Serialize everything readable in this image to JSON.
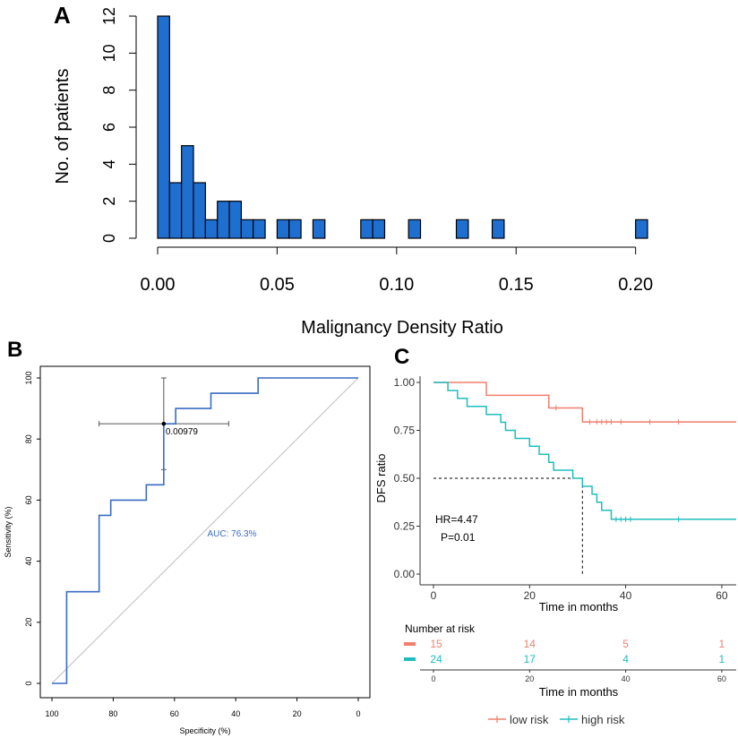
{
  "colors": {
    "bar_fill": "#1f6fd1",
    "roc_line": "#3a6cc4",
    "auc_text": "#3a6cc4",
    "low_risk": "#f07f6e",
    "high_risk": "#1fbdbf",
    "diagonal": "#bdbdbd",
    "crosshair": "#555555"
  },
  "chart_data": [
    {
      "panel": "A",
      "type": "bar",
      "xlabel": "Malignancy Density Ratio",
      "ylabel": "No. of patients",
      "bin_width": 0.005,
      "bin_starts": [
        0.0,
        0.005,
        0.01,
        0.015,
        0.02,
        0.025,
        0.03,
        0.035,
        0.04,
        0.05,
        0.055,
        0.065,
        0.085,
        0.09,
        0.105,
        0.125,
        0.14,
        0.2
      ],
      "values": [
        12,
        3,
        5,
        3,
        1,
        2,
        2,
        1,
        1,
        1,
        1,
        1,
        1,
        1,
        1,
        1,
        1,
        1
      ],
      "xlim": [
        0,
        0.205
      ],
      "ylim": [
        0,
        12
      ],
      "x_ticks": [
        "0.00",
        "0.05",
        "0.10",
        "0.15",
        "0.20"
      ],
      "x_tick_values": [
        0,
        0.05,
        0.1,
        0.15,
        0.2
      ],
      "y_ticks": [
        "0",
        "2",
        "4",
        "6",
        "8",
        "10",
        "12"
      ],
      "y_tick_values": [
        0,
        2,
        4,
        6,
        8,
        10,
        12
      ]
    },
    {
      "panel": "B",
      "type": "line",
      "xlabel": "Specificity (%)",
      "ylabel": "Sensitivity (%)",
      "xlim": [
        100,
        0
      ],
      "ylim": [
        0,
        100
      ],
      "x_ticks": [
        "100",
        "80",
        "60",
        "40",
        "20",
        "0"
      ],
      "x_tick_values": [
        100,
        80,
        60,
        40,
        20,
        0
      ],
      "y_ticks": [
        "0",
        "20",
        "40",
        "60",
        "80",
        "100"
      ],
      "y_tick_values": [
        0,
        20,
        40,
        60,
        80,
        100
      ],
      "roc": [
        [
          100,
          0
        ],
        [
          95.2,
          0
        ],
        [
          95.2,
          30
        ],
        [
          84.6,
          30
        ],
        [
          84.6,
          55
        ],
        [
          80.8,
          55
        ],
        [
          80.8,
          60
        ],
        [
          69.2,
          60
        ],
        [
          69.2,
          65
        ],
        [
          63.5,
          65
        ],
        [
          63.5,
          85
        ],
        [
          59.6,
          85
        ],
        [
          59.6,
          90
        ],
        [
          48.1,
          90
        ],
        [
          48.1,
          95
        ],
        [
          32.7,
          95
        ],
        [
          32.7,
          100
        ],
        [
          0,
          100
        ]
      ],
      "threshold_point": {
        "specificity": 63.5,
        "sensitivity": 85,
        "label": "0.00979"
      },
      "ci_specificity": [
        84.6,
        42.3
      ],
      "ci_sensitivity": [
        70,
        100
      ],
      "auc_label": "AUC: 76.3%"
    },
    {
      "panel": "C",
      "type": "line",
      "xlabel": "Time in months",
      "ylabel": "DFS ratio",
      "xlim": [
        0,
        63
      ],
      "ylim": [
        0,
        1
      ],
      "x_ticks": [
        "0",
        "20",
        "40",
        "60"
      ],
      "x_tick_values": [
        0,
        20,
        40,
        60
      ],
      "y_ticks": [
        "0.00",
        "0.25",
        "0.50",
        "0.75",
        "1.00"
      ],
      "y_tick_values": [
        0,
        0.25,
        0.5,
        0.75,
        1
      ],
      "series": [
        {
          "name": "low risk",
          "color_key": "low_risk",
          "steps": [
            [
              0,
              1
            ],
            [
              11,
              1
            ],
            [
              11,
              0.933
            ],
            [
              24,
              0.933
            ],
            [
              24,
              0.867
            ],
            [
              31,
              0.867
            ],
            [
              31,
              0.794
            ],
            [
              63,
              0.794
            ]
          ],
          "censor": [
            25.5,
            32.5,
            34,
            35,
            36,
            37,
            39,
            45,
            51
          ]
        },
        {
          "name": "high risk",
          "color_key": "high_risk",
          "steps": [
            [
              0,
              1
            ],
            [
              3,
              1
            ],
            [
              3,
              0.958
            ],
            [
              5,
              0.958
            ],
            [
              5,
              0.917
            ],
            [
              7,
              0.917
            ],
            [
              7,
              0.875
            ],
            [
              11,
              0.875
            ],
            [
              11,
              0.833
            ],
            [
              14,
              0.833
            ],
            [
              14,
              0.792
            ],
            [
              15,
              0.792
            ],
            [
              15,
              0.75
            ],
            [
              17,
              0.75
            ],
            [
              17,
              0.708
            ],
            [
              20,
              0.708
            ],
            [
              20,
              0.667
            ],
            [
              22,
              0.667
            ],
            [
              22,
              0.625
            ],
            [
              24,
              0.625
            ],
            [
              24,
              0.583
            ],
            [
              25,
              0.583
            ],
            [
              25,
              0.542
            ],
            [
              29,
              0.542
            ],
            [
              29,
              0.5
            ],
            [
              31,
              0.5
            ],
            [
              31,
              0.458
            ],
            [
              33,
              0.458
            ],
            [
              33,
              0.417
            ],
            [
              34,
              0.417
            ],
            [
              34,
              0.375
            ],
            [
              35,
              0.375
            ],
            [
              35,
              0.333
            ],
            [
              37,
              0.333
            ],
            [
              37,
              0.286
            ],
            [
              63,
              0.286
            ]
          ],
          "censor": [
            38,
            39,
            40,
            41,
            51
          ]
        }
      ],
      "median_line": {
        "x": 31,
        "y": 0.5
      },
      "annotations": [
        "HR=4.47",
        "P=0.01"
      ],
      "risk_table": {
        "title": "Number at risk",
        "times": [
          "0",
          "20",
          "40",
          "60"
        ],
        "time_values": [
          0,
          20,
          40,
          60
        ],
        "rows": [
          {
            "color_key": "low_risk",
            "counts": [
              "15",
              "14",
              "5",
              "1"
            ]
          },
          {
            "color_key": "high_risk",
            "counts": [
              "24",
              "17",
              "4",
              "1"
            ]
          }
        ],
        "xlabel": "Time in months"
      },
      "legend": [
        "low risk",
        "high risk"
      ]
    }
  ]
}
